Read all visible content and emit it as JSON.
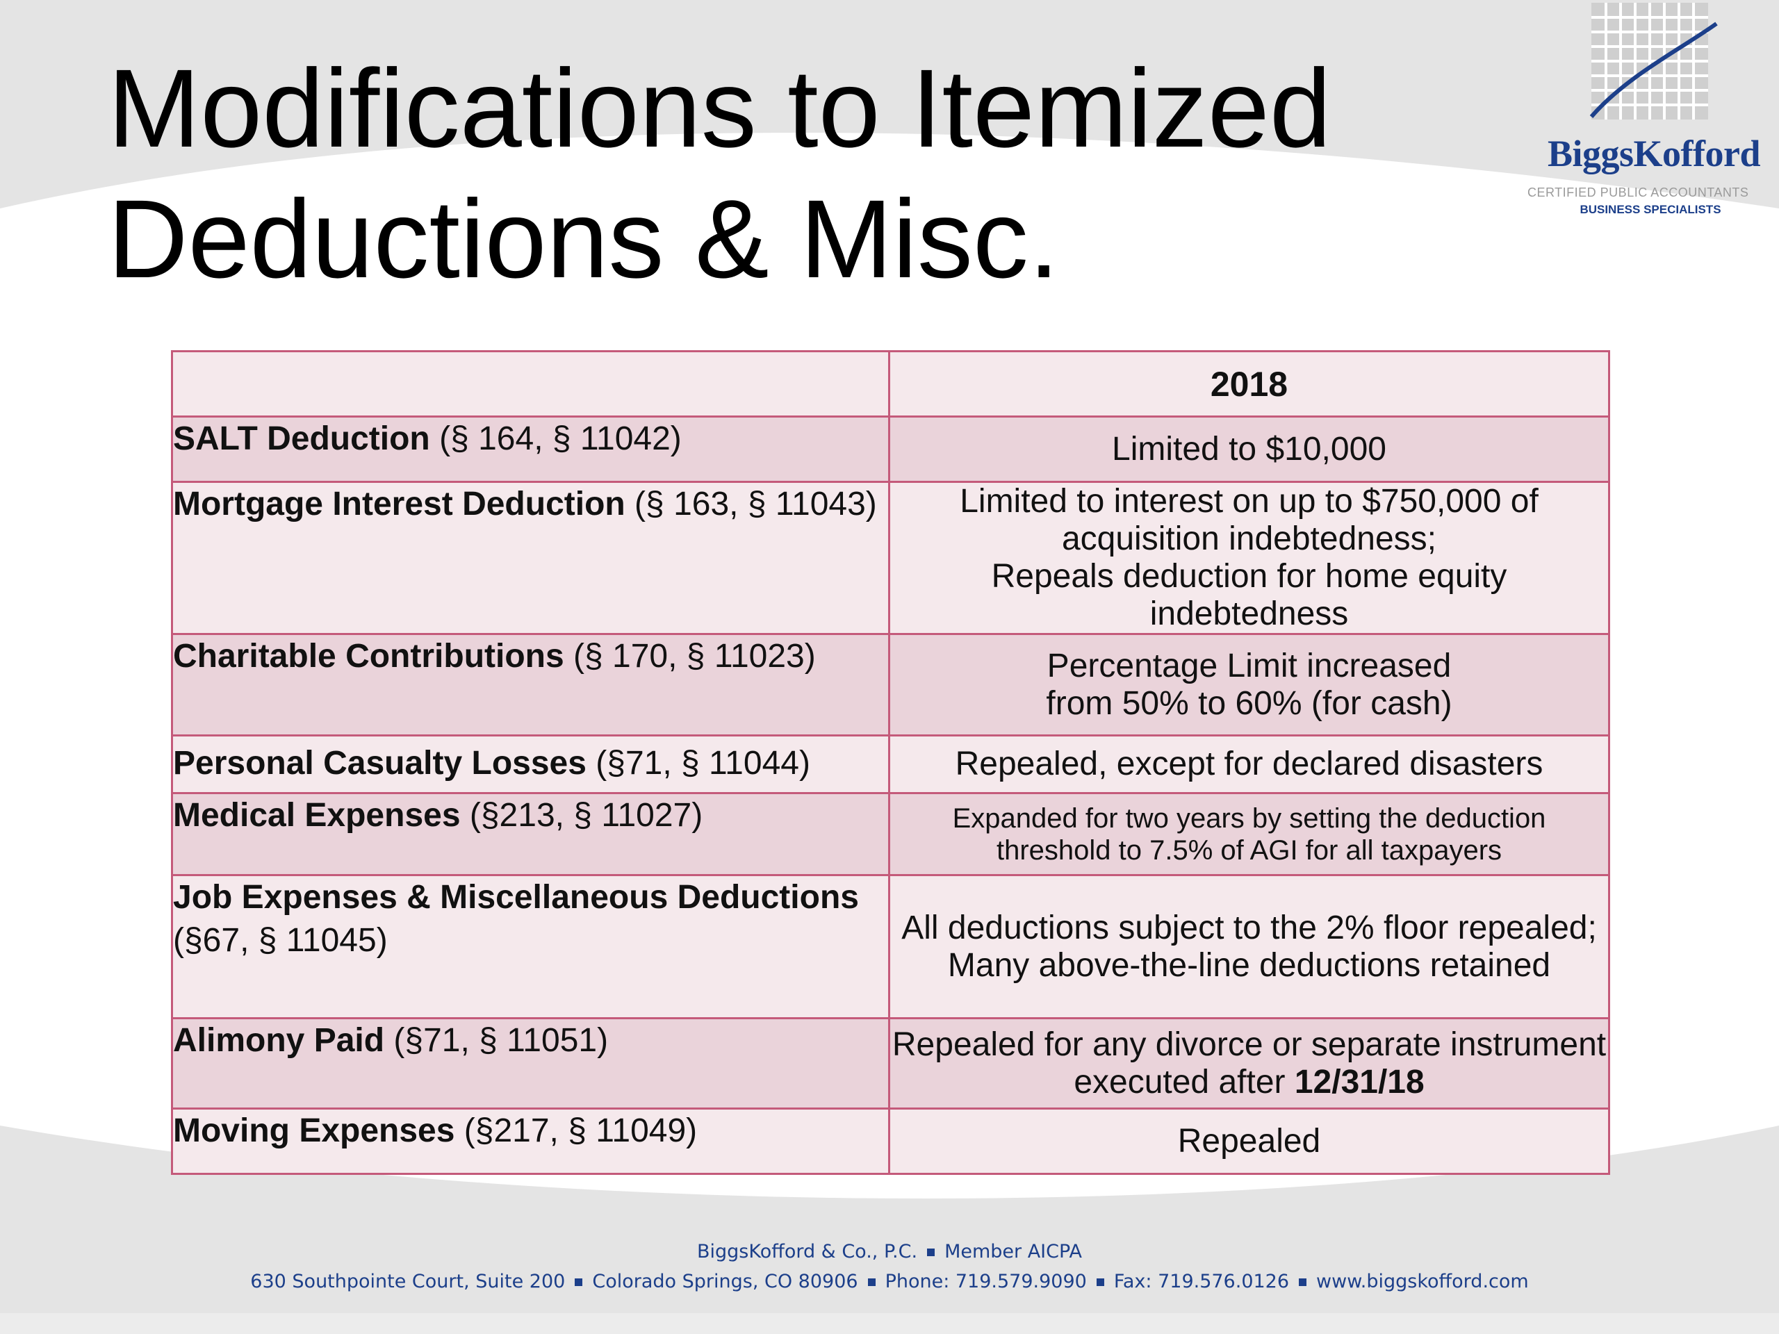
{
  "slide": {
    "title_line1": "Modifications to Itemized",
    "title_line2": "Deductions & Misc."
  },
  "logo": {
    "name": "BiggsKofford",
    "subtitle_top": "CERTIFIED PUBLIC ACCOUNTANTS",
    "subtitle_bottom": "BUSINESS SPECIALISTS"
  },
  "table": {
    "header": "2018",
    "rows": [
      {
        "label": "SALT Deduction",
        "refs": " (§ 164, § 11042)",
        "value_lines": [
          "Limited to $10,000"
        ]
      },
      {
        "label": "Mortgage Interest Deduction",
        "refs": " (§ 163, § 11043)",
        "value_lines": [
          "Limited to interest on up to $750,000 of",
          "acquisition indebtedness;",
          "Repeals deduction for home equity indebtedness"
        ]
      },
      {
        "label": "Charitable Contributions",
        "refs": " (§ 170, § 11023)",
        "value_lines": [
          "Percentage Limit increased",
          "from 50% to 60% (for cash)"
        ]
      },
      {
        "label": "Personal Casualty Losses",
        "refs": " (§71, § 11044)",
        "value_lines": [
          "Repealed, except for declared disasters"
        ]
      },
      {
        "label": "Medical Expenses",
        "refs": " (§213, § 11027)",
        "value_lines": [
          "Expanded for two years by setting the deduction",
          "threshold to 7.5% of AGI for all taxpayers"
        ]
      },
      {
        "label": "Job Expenses & Miscellaneous Deductions",
        "refs": "(§67, § 11045)",
        "value_lines": [
          "All deductions subject to the 2% floor repealed;",
          "Many above-the-line deductions retained"
        ]
      },
      {
        "label": "Alimony Paid",
        "refs": " (§71, § 11051)",
        "value_lines": [
          "Repealed for any divorce or separate instrument",
          "executed after "
        ],
        "value_bold": "12/31/18"
      },
      {
        "label": "Moving Expenses",
        "refs": " (§217, § 11049)",
        "value_lines": [
          "Repealed"
        ]
      }
    ]
  },
  "footer": {
    "firm": "BiggsKofford & Co., P.C.",
    "member": "Member AICPA",
    "address": "630 Southpointe Court, Suite 200",
    "city": "Colorado Springs, CO 80906",
    "phone": "Phone: 719.579.9090",
    "fax": "Fax: 719.576.0126",
    "website": "www.biggskofford.com"
  },
  "colors": {
    "table_border": "#c45a7a",
    "row_light": "#f5e9ec",
    "row_dark": "#ead3da",
    "brand_blue": "#1c3f8a",
    "background_band": "#e3e3e3"
  }
}
